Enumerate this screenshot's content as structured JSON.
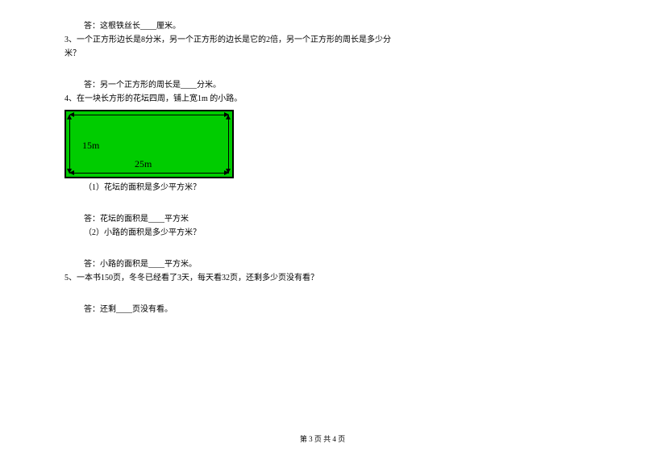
{
  "lines": {
    "q2_answer": "答：这根铁丝长____厘米。",
    "q3_prompt_a": "3、一个正方形边长是8分米，另一个正方形的边长是它的2倍，另一个正方形的周长是多少分",
    "q3_prompt_b": "米？",
    "q3_answer": "答：另一个正方形的周长是____分米。",
    "q4_prompt": "4、在一块长方形的花坛四周，铺上宽1m 的小路。",
    "q4_sub1": "（1）花坛的面积是多少平方米？",
    "q4_sub1_answer": "答：花坛的面积是____平方米",
    "q4_sub2": "（2）小路的面积是多少平方米？",
    "q4_sub2_answer": "答：小路的面积是____平方米。",
    "q5_prompt": "5、一本书150页，冬冬已经看了3天，每天看32页，还剩多少页没有看？",
    "q5_answer": "答：还剩____页没有看。"
  },
  "diagram": {
    "width_label": "25m",
    "height_label": "15m",
    "fill_color": "#00cc00",
    "border_color": "#000000"
  },
  "footer": {
    "text": "第 3 页 共 4 页"
  }
}
